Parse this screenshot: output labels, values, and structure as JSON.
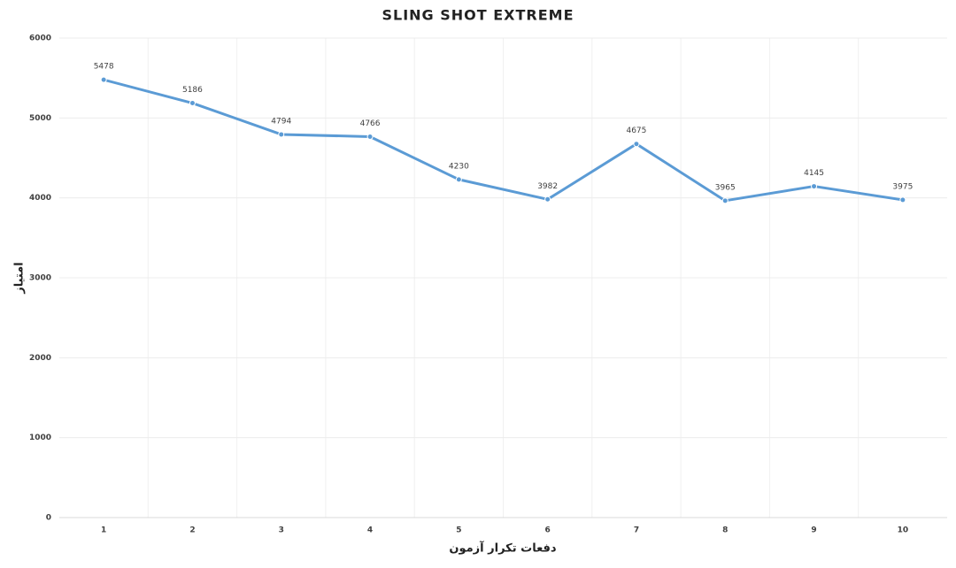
{
  "chart_data": {
    "type": "line",
    "title": "SLING SHOT EXTREME",
    "x_label": "دفعات تکرار آزمون",
    "y_label": "امتیاز",
    "categories": [
      "1",
      "2",
      "3",
      "4",
      "5",
      "6",
      "7",
      "8",
      "9",
      "10"
    ],
    "series": [
      {
        "name": "SLING SHOT EXTREME",
        "color": "#5b9bd5",
        "values": [
          5478,
          5186,
          4794,
          4766,
          4230,
          3982,
          4675,
          3965,
          4145,
          3975
        ]
      }
    ],
    "ylim": [
      0,
      6000
    ],
    "yticks": [
      0,
      1000,
      2000,
      3000,
      4000,
      5000,
      6000
    ],
    "grid": true
  }
}
